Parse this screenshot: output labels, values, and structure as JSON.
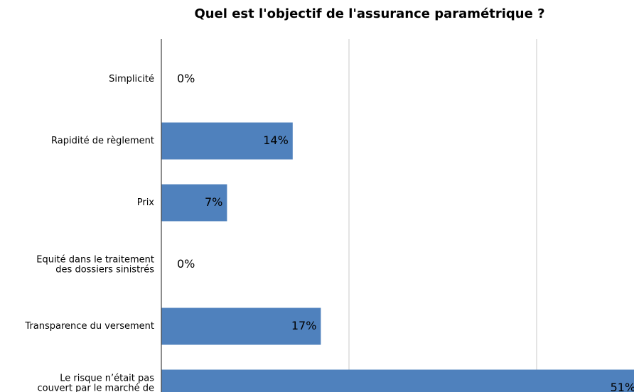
{
  "chart_data": {
    "type": "barh",
    "title": "Quel est l'objectif de l'assurance paramétrique ?",
    "categories": [
      "Simplicité",
      "Rapidité de règlement",
      "Prix",
      "Equité dans le traitement\ndes dossiers sinistrés",
      "Transparence du versement",
      "Le risque n’était pas\ncouvert par le marché de\nl’assurance traditionnelle"
    ],
    "values": [
      0,
      14,
      7,
      0,
      17,
      51
    ],
    "value_labels": [
      "0%",
      "14%",
      "7%",
      "0%",
      "17%",
      "51%"
    ],
    "color": "#4f81bd",
    "xlim": [
      0,
      50
    ],
    "xticks": [
      0,
      20,
      40
    ],
    "grid": true
  }
}
